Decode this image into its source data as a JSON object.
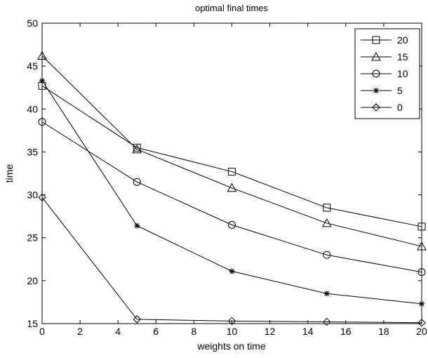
{
  "chart_data": {
    "type": "line",
    "title": "optimal final times",
    "xlabel": "weights on time",
    "ylabel": "time",
    "xlim": [
      0,
      20
    ],
    "ylim": [
      15,
      50
    ],
    "xticks": [
      0,
      2,
      4,
      6,
      8,
      10,
      12,
      14,
      16,
      18,
      20
    ],
    "yticks": [
      15,
      20,
      25,
      30,
      35,
      40,
      45,
      50
    ],
    "grid": false,
    "legend_position": "top-right",
    "x": [
      0,
      5,
      10,
      15,
      20
    ],
    "series": [
      {
        "name": "20",
        "marker": "square",
        "values": [
          42.7,
          35.5,
          32.7,
          28.5,
          26.3
        ]
      },
      {
        "name": "15",
        "marker": "triangle",
        "values": [
          46.2,
          35.3,
          30.8,
          26.7,
          24.0
        ]
      },
      {
        "name": "10",
        "marker": "circle",
        "values": [
          38.5,
          31.5,
          26.5,
          23.0,
          21.0
        ]
      },
      {
        "name": "5",
        "marker": "star",
        "values": [
          43.3,
          26.4,
          21.1,
          18.5,
          17.3
        ]
      },
      {
        "name": "0",
        "marker": "diamond",
        "values": [
          29.7,
          15.5,
          15.3,
          15.2,
          15.1
        ]
      }
    ]
  }
}
